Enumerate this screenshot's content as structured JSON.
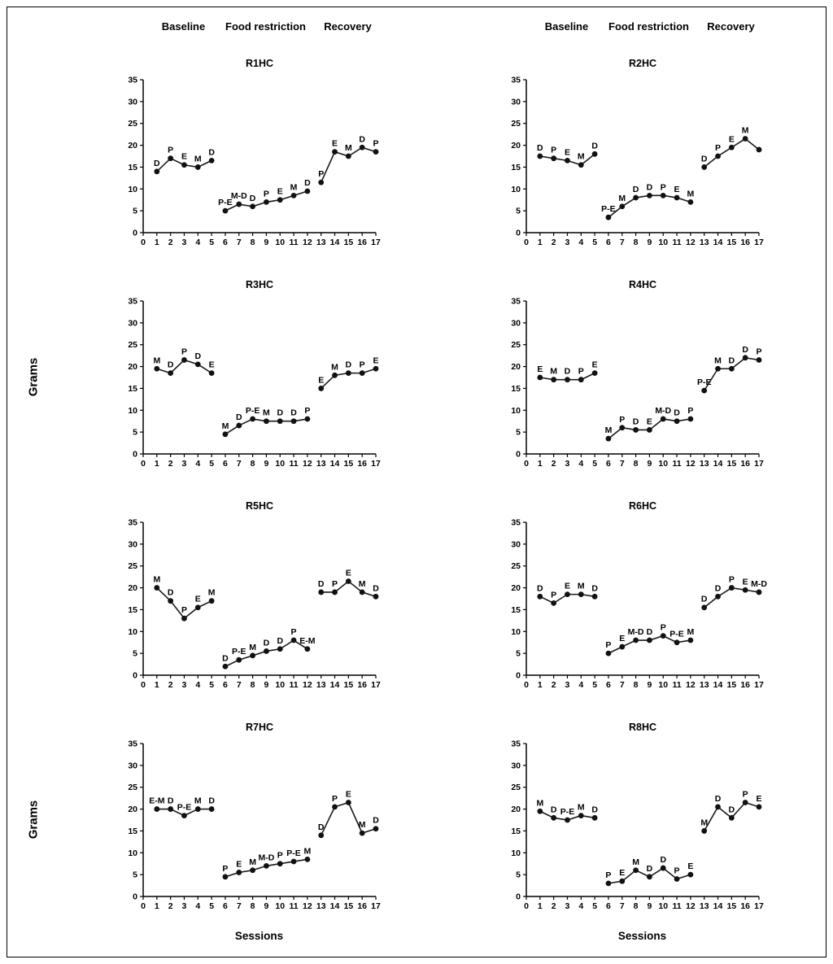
{
  "figure": {
    "phase_headers": [
      "Baseline",
      "Food restriction",
      "Recovery"
    ],
    "ylabel": "Grams",
    "xlabel": "Sessions",
    "line_color": "#1a1a1a",
    "marker_color": "#111111"
  },
  "chart_data": [
    {
      "type": "line",
      "title": "R1HC",
      "x": [
        1,
        2,
        3,
        4,
        5,
        6,
        7,
        8,
        9,
        10,
        11,
        12,
        13,
        14,
        15,
        16,
        17
      ],
      "values": [
        14,
        17,
        15.5,
        15,
        16.5,
        5,
        6.5,
        6,
        7,
        7.5,
        8.5,
        9.5,
        11.5,
        18.5,
        17.5,
        19.5,
        18.5
      ],
      "point_labels": [
        "D",
        "P",
        "E",
        "M",
        "D",
        "P-E",
        "M-D",
        "D",
        "P",
        "E",
        "M",
        "D",
        "P",
        "E",
        "M",
        "D",
        "P"
      ],
      "phases": [
        [
          1,
          5
        ],
        [
          6,
          12
        ],
        [
          13,
          17
        ]
      ],
      "xlim": [
        0,
        17
      ],
      "ylim": [
        0,
        35
      ],
      "yticks": [
        0,
        5,
        10,
        15,
        20,
        25,
        30,
        35
      ]
    },
    {
      "type": "line",
      "title": "R2HC",
      "x": [
        1,
        2,
        3,
        4,
        5,
        6,
        7,
        8,
        9,
        10,
        11,
        12,
        13,
        14,
        15,
        16,
        17
      ],
      "values": [
        17.5,
        17,
        16.5,
        15.5,
        18,
        3.5,
        6,
        8,
        8.5,
        8.5,
        8,
        7,
        15,
        17.5,
        19.5,
        21.5,
        19
      ],
      "point_labels": [
        "D",
        "P",
        "E",
        "M",
        "D",
        "P-E",
        "M",
        "D",
        "D",
        "P",
        "E",
        "M",
        "D",
        "P",
        "E",
        "M",
        ""
      ],
      "phases": [
        [
          1,
          5
        ],
        [
          6,
          12
        ],
        [
          13,
          17
        ]
      ],
      "xlim": [
        0,
        17
      ],
      "ylim": [
        0,
        35
      ],
      "yticks": [
        0,
        5,
        10,
        15,
        20,
        25,
        30,
        35
      ]
    },
    {
      "type": "line",
      "title": "R3HC",
      "x": [
        1,
        2,
        3,
        4,
        5,
        6,
        7,
        8,
        9,
        10,
        11,
        12,
        13,
        14,
        15,
        16,
        17
      ],
      "values": [
        19.5,
        18.5,
        21.5,
        20.5,
        18.5,
        4.5,
        6.5,
        8,
        7.5,
        7.5,
        7.5,
        8,
        15,
        18,
        18.5,
        18.5,
        19.5
      ],
      "point_labels": [
        "M",
        "D",
        "P",
        "D",
        "E",
        "M",
        "D",
        "P-E",
        "M",
        "D",
        "D",
        "P",
        "E",
        "M",
        "D",
        "P",
        "E"
      ],
      "phases": [
        [
          1,
          5
        ],
        [
          6,
          12
        ],
        [
          13,
          17
        ]
      ],
      "xlim": [
        0,
        17
      ],
      "ylim": [
        0,
        35
      ],
      "yticks": [
        0,
        5,
        10,
        15,
        20,
        25,
        30,
        35
      ]
    },
    {
      "type": "line",
      "title": "R4HC",
      "x": [
        1,
        2,
        3,
        4,
        5,
        6,
        7,
        8,
        9,
        10,
        11,
        12,
        13,
        14,
        15,
        16,
        17
      ],
      "values": [
        17.5,
        17,
        17,
        17,
        18.5,
        3.5,
        6,
        5.5,
        5.5,
        8,
        7.5,
        8,
        14.5,
        19.5,
        19.5,
        22,
        21.5
      ],
      "point_labels": [
        "E",
        "M",
        "D",
        "P",
        "E",
        "M",
        "P",
        "D",
        "E",
        "M-D",
        "D",
        "P",
        "P-E",
        "M",
        "D",
        "D",
        "P"
      ],
      "phases": [
        [
          1,
          5
        ],
        [
          6,
          12
        ],
        [
          13,
          17
        ]
      ],
      "xlim": [
        0,
        17
      ],
      "ylim": [
        0,
        35
      ],
      "yticks": [
        0,
        5,
        10,
        15,
        20,
        25,
        30,
        35
      ]
    },
    {
      "type": "line",
      "title": "R5HC",
      "x": [
        1,
        2,
        3,
        4,
        5,
        6,
        7,
        8,
        9,
        10,
        11,
        12,
        13,
        14,
        15,
        16,
        17
      ],
      "values": [
        20,
        17,
        13,
        15.5,
        17,
        2,
        3.5,
        4.5,
        5.5,
        6,
        8,
        6,
        19,
        19,
        21.5,
        19,
        18
      ],
      "point_labels": [
        "M",
        "D",
        "P",
        "E",
        "M",
        "D",
        "P-E",
        "M",
        "D",
        "D",
        "P",
        "E-M",
        "D",
        "P",
        "E",
        "M",
        "D"
      ],
      "phases": [
        [
          1,
          5
        ],
        [
          6,
          12
        ],
        [
          13,
          17
        ]
      ],
      "xlim": [
        0,
        17
      ],
      "ylim": [
        0,
        35
      ],
      "yticks": [
        0,
        5,
        10,
        15,
        20,
        25,
        30,
        35
      ]
    },
    {
      "type": "line",
      "title": "R6HC",
      "x": [
        1,
        2,
        3,
        4,
        5,
        6,
        7,
        8,
        9,
        10,
        11,
        12,
        13,
        14,
        15,
        16,
        17
      ],
      "values": [
        18,
        16.5,
        18.5,
        18.5,
        18,
        5,
        6.5,
        8,
        8,
        9,
        7.5,
        8,
        15.5,
        18,
        20,
        19.5,
        19
      ],
      "point_labels": [
        "D",
        "P",
        "E",
        "M",
        "D",
        "P",
        "E",
        "M-D",
        "D",
        "P",
        "P-E",
        "M",
        "D",
        "D",
        "P",
        "E",
        "M-D"
      ],
      "phases": [
        [
          1,
          5
        ],
        [
          6,
          12
        ],
        [
          13,
          17
        ]
      ],
      "xlim": [
        0,
        17
      ],
      "ylim": [
        0,
        35
      ],
      "yticks": [
        0,
        5,
        10,
        15,
        20,
        25,
        30,
        35
      ]
    },
    {
      "type": "line",
      "title": "R7HC",
      "x": [
        1,
        2,
        3,
        4,
        5,
        6,
        7,
        8,
        9,
        10,
        11,
        12,
        13,
        14,
        15,
        16,
        17
      ],
      "values": [
        20,
        20,
        18.5,
        20,
        20,
        4.5,
        5.5,
        6,
        7,
        7.5,
        8,
        8.5,
        14,
        20.5,
        21.5,
        14.5,
        15.5
      ],
      "point_labels": [
        "E-M",
        "D",
        "P-E",
        "M",
        "D",
        "P",
        "E",
        "M",
        "M-D",
        "P",
        "P-E",
        "M",
        "D",
        "P",
        "E",
        "M",
        "D"
      ],
      "phases": [
        [
          1,
          5
        ],
        [
          6,
          12
        ],
        [
          13,
          17
        ]
      ],
      "xlim": [
        0,
        17
      ],
      "ylim": [
        0,
        35
      ],
      "yticks": [
        0,
        5,
        10,
        15,
        20,
        25,
        30,
        35
      ]
    },
    {
      "type": "line",
      "title": "R8HC",
      "x": [
        1,
        2,
        3,
        4,
        5,
        6,
        7,
        8,
        9,
        10,
        11,
        12,
        13,
        14,
        15,
        16,
        17
      ],
      "values": [
        19.5,
        18,
        17.5,
        18.5,
        18,
        3,
        3.5,
        6,
        4.5,
        6.5,
        4,
        5,
        15,
        20.5,
        18,
        21.5,
        20.5
      ],
      "point_labels": [
        "M",
        "D",
        "P-E",
        "M",
        "D",
        "P",
        "E",
        "M",
        "D",
        "D",
        "P",
        "E",
        "M",
        "D",
        "D",
        "P",
        "E"
      ],
      "phases": [
        [
          1,
          5
        ],
        [
          6,
          12
        ],
        [
          13,
          17
        ]
      ],
      "xlim": [
        0,
        17
      ],
      "ylim": [
        0,
        35
      ],
      "yticks": [
        0,
        5,
        10,
        15,
        20,
        25,
        30,
        35
      ]
    }
  ]
}
